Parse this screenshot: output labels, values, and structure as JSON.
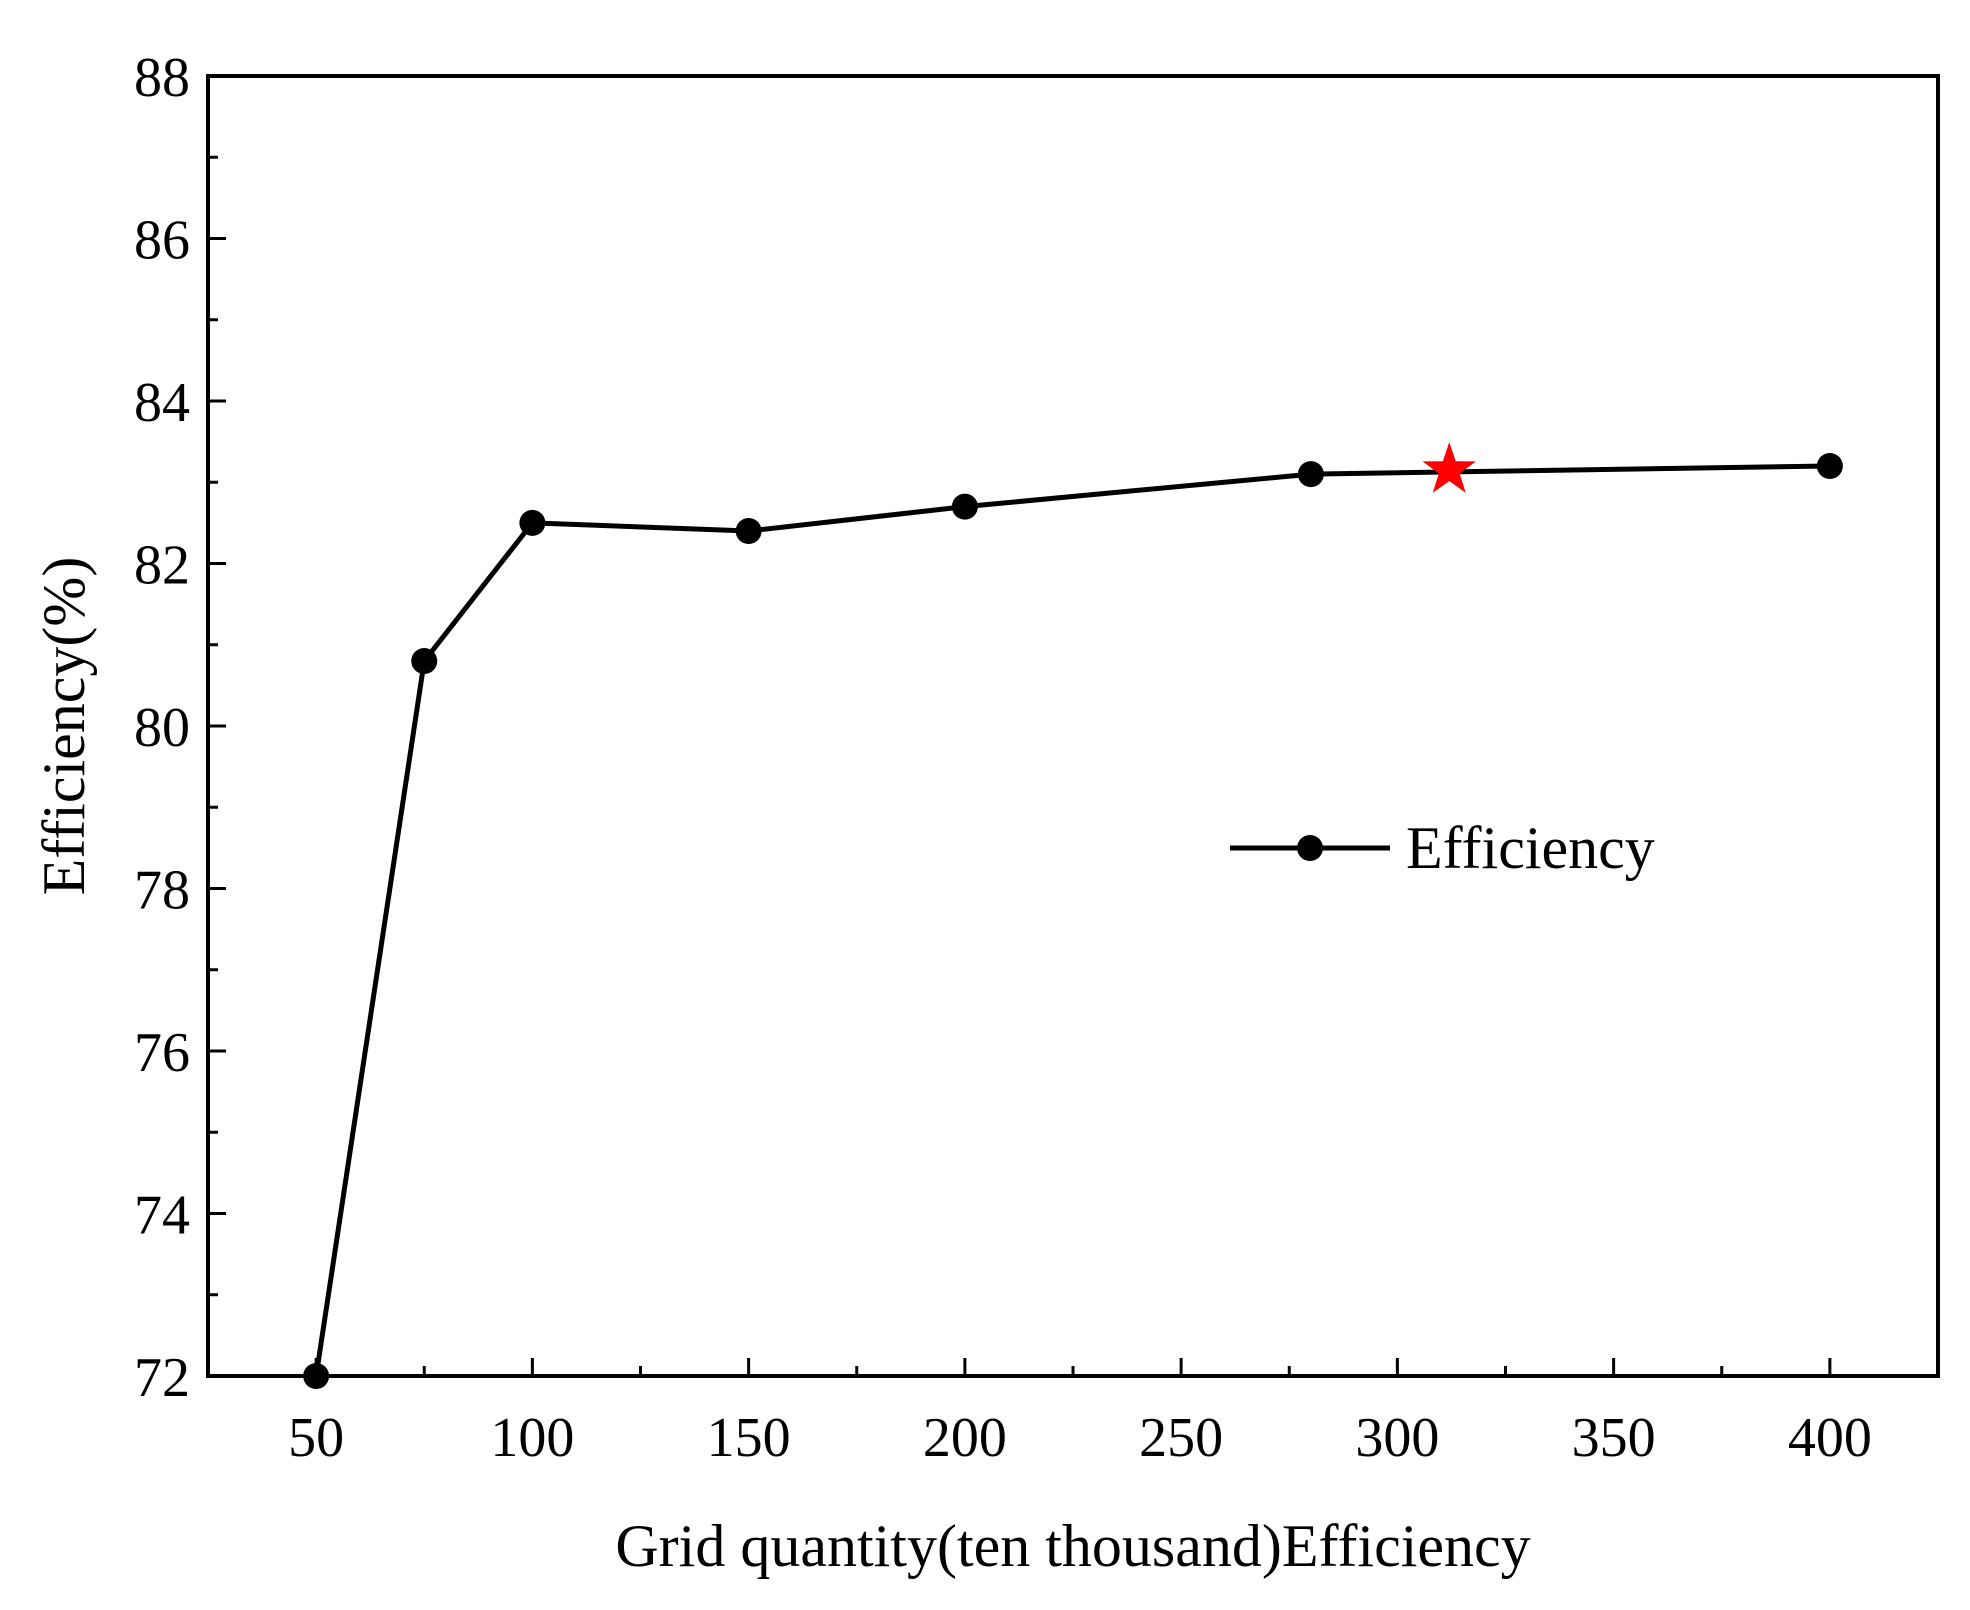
{
  "chart_data": {
    "type": "line",
    "title": "",
    "xlabel": "Grid quantity(ten thousand)Efficiency",
    "ylabel": "Efficiency(%)",
    "xlim": [
      25,
      425
    ],
    "ylim": [
      72,
      88
    ],
    "xticks": [
      50,
      100,
      150,
      200,
      250,
      300,
      350,
      400
    ],
    "yticks": [
      72,
      74,
      76,
      78,
      80,
      82,
      84,
      86,
      88
    ],
    "grid": false,
    "legend_position": "center-right",
    "series": [
      {
        "name": "Efficiency",
        "color": "#000000",
        "marker": "circle",
        "x": [
          50,
          75,
          100,
          150,
          200,
          280,
          400
        ],
        "y": [
          72.0,
          80.8,
          82.5,
          82.4,
          82.7,
          83.1,
          83.2
        ]
      }
    ],
    "annotations": [
      {
        "type": "star-marker",
        "color": "#ff0000",
        "x": 312,
        "y": 83.15
      }
    ]
  }
}
